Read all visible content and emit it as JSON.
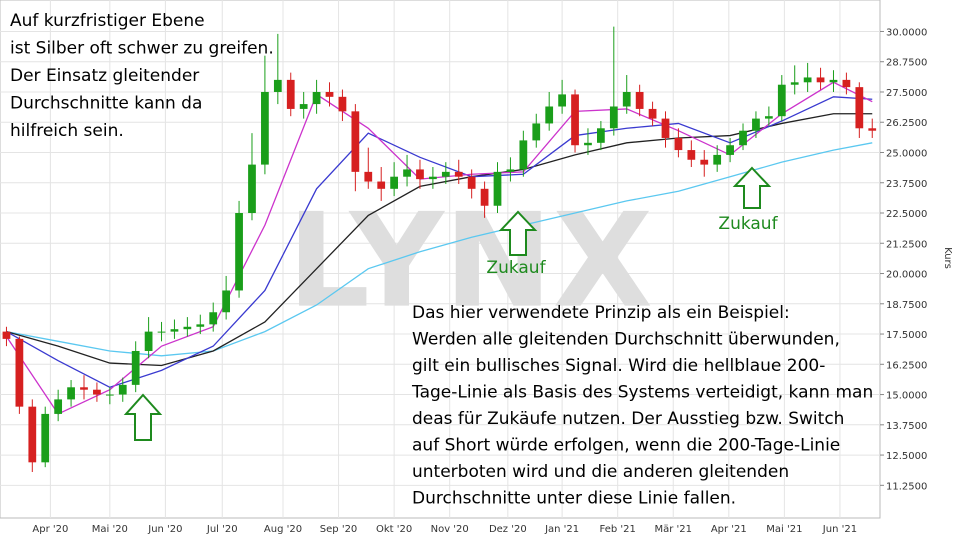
{
  "chart_data": {
    "type": "candlestick",
    "ylabel": "Kurs",
    "watermark": "LYNX",
    "xlim": [
      -0.5,
      67.6
    ],
    "ylim": [
      9.9,
      31.3
    ],
    "xticks": [
      {
        "value": 3.4,
        "label": "Apr '20"
      },
      {
        "value": 8.0,
        "label": "Mai '20"
      },
      {
        "value": 12.3,
        "label": "Jun '20"
      },
      {
        "value": 16.7,
        "label": "Jul '20"
      },
      {
        "value": 21.4,
        "label": "Aug '20"
      },
      {
        "value": 25.7,
        "label": "Sep '20"
      },
      {
        "value": 30.0,
        "label": "Okt '20"
      },
      {
        "value": 34.3,
        "label": "Nov '20"
      },
      {
        "value": 38.8,
        "label": "Dez '20"
      },
      {
        "value": 43.0,
        "label": "Jan '21"
      },
      {
        "value": 47.3,
        "label": "Feb '21"
      },
      {
        "value": 51.6,
        "label": "Mär '21"
      },
      {
        "value": 55.9,
        "label": "Apr '21"
      },
      {
        "value": 60.2,
        "label": "Mai '21"
      },
      {
        "value": 64.5,
        "label": "Jun '21"
      }
    ],
    "yticks": [
      {
        "value": 11.25,
        "label": "11.2500"
      },
      {
        "value": 12.5,
        "label": "12.5000"
      },
      {
        "value": 13.75,
        "label": "13.7500"
      },
      {
        "value": 15,
        "label": "15.0000"
      },
      {
        "value": 16.25,
        "label": "16.2500"
      },
      {
        "value": 17.5,
        "label": "17.5000"
      },
      {
        "value": 18.75,
        "label": "18.7500"
      },
      {
        "value": 20,
        "label": "20.0000"
      },
      {
        "value": 21.25,
        "label": "21.2500"
      },
      {
        "value": 22.5,
        "label": "22.5000"
      },
      {
        "value": 23.75,
        "label": "23.7500"
      },
      {
        "value": 25,
        "label": "25.0000"
      },
      {
        "value": 26.25,
        "label": "26.2500"
      },
      {
        "value": 27.5,
        "label": "27.5000"
      },
      {
        "value": 28.75,
        "label": "28.7500"
      },
      {
        "value": 30,
        "label": "30.0000"
      }
    ],
    "grid": true,
    "up_color": "#1a9e1a",
    "down_color": "#d62020",
    "open": [
      17.6,
      17.3,
      14.5,
      12.2,
      14.2,
      14.8,
      15.3,
      15.2,
      15.0,
      15.0,
      15.4,
      16.8,
      17.6,
      17.6,
      17.7,
      17.8,
      17.9,
      18.4,
      19.3,
      22.5,
      24.5,
      27.5,
      28.0,
      26.8,
      27.0,
      27.5,
      27.3,
      26.7,
      24.2,
      23.8,
      23.5,
      24.0,
      24.3,
      23.9,
      24.0,
      24.2,
      24.0,
      23.5,
      22.8,
      24.2,
      24.3,
      25.5,
      26.2,
      26.9,
      27.4,
      25.3,
      25.4,
      26.0,
      26.9,
      27.5,
      26.8,
      26.4,
      25.6,
      25.1,
      24.7,
      24.5,
      24.9,
      25.3,
      25.9,
      26.4,
      26.5,
      27.8,
      27.9,
      28.1,
      27.9,
      28.0,
      27.7,
      26.0
    ],
    "high": [
      17.8,
      17.4,
      14.8,
      14.5,
      15.2,
      15.6,
      15.8,
      15.5,
      15.3,
      15.7,
      17.2,
      18.2,
      18.0,
      18.1,
      18.2,
      18.3,
      18.8,
      19.9,
      23.0,
      25.8,
      29.0,
      29.9,
      28.3,
      27.5,
      28.0,
      27.9,
      27.6,
      27.0,
      25.2,
      24.4,
      24.6,
      24.9,
      24.7,
      24.4,
      24.6,
      24.7,
      24.3,
      23.8,
      24.6,
      24.8,
      25.9,
      26.6,
      27.5,
      28.0,
      27.6,
      26.0,
      26.3,
      30.2,
      28.2,
      27.8,
      27.1,
      26.7,
      26.0,
      25.5,
      25.1,
      25.3,
      25.6,
      26.2,
      26.7,
      26.9,
      28.2,
      28.6,
      28.7,
      28.5,
      28.4,
      28.3,
      27.9,
      26.4
    ],
    "low": [
      17.0,
      14.2,
      11.8,
      12.0,
      13.9,
      14.5,
      14.8,
      14.7,
      14.6,
      14.7,
      15.1,
      16.5,
      17.2,
      17.3,
      17.4,
      17.5,
      17.6,
      18.1,
      19.0,
      22.2,
      24.1,
      27.0,
      26.5,
      26.4,
      26.6,
      26.9,
      26.3,
      23.4,
      23.5,
      23.0,
      23.2,
      23.6,
      23.5,
      23.5,
      23.7,
      23.7,
      23.1,
      22.3,
      22.5,
      23.8,
      24.0,
      25.2,
      25.9,
      26.6,
      25.0,
      24.9,
      25.1,
      25.7,
      26.6,
      26.5,
      26.1,
      25.2,
      24.8,
      24.4,
      24.0,
      24.2,
      24.6,
      25.1,
      25.6,
      26.1,
      26.3,
      27.4,
      27.5,
      27.6,
      27.5,
      27.4,
      25.6,
      25.6
    ],
    "close": [
      17.3,
      14.5,
      12.2,
      14.2,
      14.8,
      15.3,
      15.2,
      15.0,
      15.0,
      15.4,
      16.8,
      17.6,
      17.6,
      17.7,
      17.8,
      17.9,
      18.4,
      19.3,
      22.5,
      24.5,
      27.5,
      28.0,
      26.8,
      27.0,
      27.5,
      27.3,
      26.7,
      24.2,
      23.8,
      23.5,
      24.0,
      24.3,
      23.9,
      24.0,
      24.2,
      24.0,
      23.5,
      22.8,
      24.2,
      24.3,
      25.5,
      26.2,
      26.9,
      27.4,
      25.3,
      25.4,
      26.0,
      26.9,
      27.5,
      26.8,
      26.4,
      25.6,
      25.1,
      24.7,
      24.5,
      24.9,
      25.3,
      25.9,
      26.4,
      26.5,
      27.8,
      27.9,
      28.1,
      27.9,
      28.0,
      27.7,
      26.0,
      25.9
    ],
    "lines": [
      {
        "color": "#5bc8f0",
        "x": [
          0,
          4,
          8,
          12,
          16,
          20,
          24,
          28,
          32,
          36,
          40,
          44,
          48,
          52,
          56,
          60,
          64,
          67
        ],
        "values": [
          17.6,
          17.2,
          16.8,
          16.6,
          16.8,
          17.6,
          18.7,
          20.2,
          20.9,
          21.5,
          22.0,
          22.5,
          23.0,
          23.4,
          24.0,
          24.6,
          25.1,
          25.4
        ]
      },
      {
        "color": "#222222",
        "x": [
          0,
          4,
          8,
          12,
          16,
          20,
          24,
          28,
          32,
          36,
          40,
          44,
          48,
          52,
          56,
          60,
          64,
          67
        ],
        "values": [
          17.6,
          17.0,
          16.3,
          16.2,
          16.8,
          18.0,
          20.2,
          22.4,
          23.6,
          24.0,
          24.3,
          24.9,
          25.4,
          25.6,
          25.7,
          26.2,
          26.6,
          26.6
        ]
      },
      {
        "color": "#3a3ad0",
        "x": [
          0,
          4,
          8,
          12,
          16,
          20,
          24,
          28,
          32,
          36,
          40,
          44,
          48,
          52,
          56,
          60,
          64,
          67
        ],
        "values": [
          17.6,
          16.4,
          15.3,
          16.0,
          17.0,
          19.3,
          23.5,
          25.8,
          24.8,
          24.0,
          24.1,
          25.7,
          26.0,
          26.2,
          25.4,
          26.3,
          27.3,
          27.2
        ]
      },
      {
        "color": "#cc33cc",
        "x": [
          0,
          4,
          8,
          12,
          16,
          20,
          24,
          28,
          32,
          36,
          40,
          44,
          48,
          52,
          56,
          60,
          64,
          67
        ],
        "values": [
          17.4,
          14.2,
          15.2,
          17.0,
          17.8,
          22.0,
          27.4,
          26.0,
          23.9,
          24.1,
          24.2,
          26.7,
          26.8,
          25.9,
          24.9,
          26.6,
          27.9,
          27.1
        ]
      }
    ],
    "note_top": [
      "Auf kurzfristiger Ebene",
      "ist Silber oft schwer zu greifen.",
      "Der Einsatz gleitender",
      "Durchschnitte kann da",
      "hilfreich sein."
    ],
    "note_bottom": [
      "Das hier verwendete Prinzip als ein Beispiel:",
      "Werden alle gleitenden Durchschnitt überwunden,",
      "gilt ein bullisches Signal. Wird die hellblaue 200-",
      "Tage-Linie als Basis des Systems verteidigt, kann man",
      "deas für Zukäufe nutzen. Der Ausstieg bzw. Switch",
      "auf Short würde erfolgen, wenn die 200-Tage-Linie",
      "unterboten wird und die anderen gleitenden",
      "Durchschnitte unter diese Linie fallen."
    ],
    "annotations": [
      "Zukauf",
      "Zukauf"
    ]
  }
}
